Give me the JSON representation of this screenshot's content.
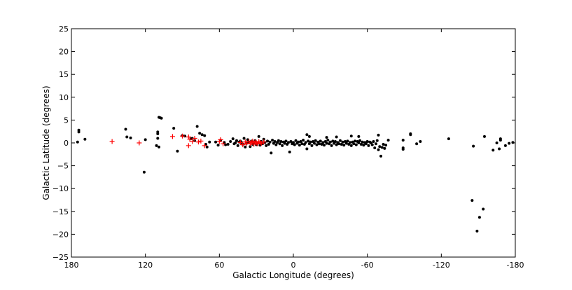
{
  "chart_data": {
    "type": "scatter",
    "xlabel": "Galactic Longitude (degrees)",
    "ylabel": "Galactic Latitude (degrees)",
    "xlim": [
      180,
      -180
    ],
    "ylim": [
      -25,
      25
    ],
    "x_ticks": [
      180,
      120,
      60,
      0,
      -60,
      -120,
      -180
    ],
    "x_tick_labels": [
      "180",
      "120",
      "60",
      "0",
      "-60",
      "-120",
      "-180"
    ],
    "y_ticks": [
      25,
      20,
      15,
      10,
      5,
      0,
      -5,
      -10,
      -15,
      -20,
      -25
    ],
    "y_tick_labels": [
      "25",
      "20",
      "15",
      "10",
      "5",
      "0",
      "−5",
      "−10",
      "−15",
      "−20",
      "−25"
    ],
    "grid": false,
    "series": [
      {
        "marker": "dot",
        "color": "#000000",
        "points": [
          [
            174,
            2.8
          ],
          [
            174,
            2.4
          ],
          [
            175,
            0.2
          ],
          [
            169,
            0.8
          ],
          [
            136,
            3.0
          ],
          [
            135,
            1.3
          ],
          [
            132,
            1.1
          ],
          [
            120,
            0.7
          ],
          [
            121,
            -6.4
          ],
          [
            108,
            5.5
          ],
          [
            109,
            5.6
          ],
          [
            107,
            5.4
          ],
          [
            110,
            2.4
          ],
          [
            110,
            2.0
          ],
          [
            110,
            1.0
          ],
          [
            111,
            -0.6
          ],
          [
            109,
            -0.9
          ],
          [
            97,
            3.2
          ],
          [
            94,
            -1.8
          ],
          [
            90,
            1.6
          ],
          [
            88,
            1.5
          ],
          [
            83,
            0.9
          ],
          [
            82,
            1.0
          ],
          [
            80,
            0.5
          ],
          [
            78,
            3.6
          ],
          [
            76,
            2.1
          ],
          [
            74,
            1.8
          ],
          [
            72,
            1.6
          ],
          [
            71,
            -0.3
          ],
          [
            70,
            -0.9
          ],
          [
            68,
            0.2
          ],
          [
            63,
            0.2
          ],
          [
            61,
            -0.5
          ],
          [
            59,
            0.6
          ],
          [
            56,
            0.1
          ],
          [
            55,
            -0.4
          ],
          [
            53,
            -0.3
          ],
          [
            51,
            0.3
          ],
          [
            49,
            0.9
          ],
          [
            48,
            -0.2
          ],
          [
            47,
            0.0
          ],
          [
            46,
            0.5
          ],
          [
            45,
            -0.6
          ],
          [
            44,
            0.2
          ],
          [
            43,
            0.4
          ],
          [
            42,
            0.1
          ],
          [
            41,
            -0.3
          ],
          [
            40,
            1.0
          ],
          [
            39,
            -0.9
          ],
          [
            38,
            -0.1
          ],
          [
            37,
            0.7
          ],
          [
            36,
            0.2
          ],
          [
            35,
            -0.8
          ],
          [
            34,
            0.4
          ],
          [
            33,
            -0.3
          ],
          [
            32,
            0.1
          ],
          [
            31,
            0.5
          ],
          [
            30,
            -0.4
          ],
          [
            29,
            0.0
          ],
          [
            28,
            1.4
          ],
          [
            27,
            -0.5
          ],
          [
            26,
            0.3
          ],
          [
            25,
            -0.2
          ],
          [
            24,
            0.8
          ],
          [
            23,
            0.1
          ],
          [
            22,
            -0.6
          ],
          [
            21,
            0.4
          ],
          [
            20,
            -0.3
          ],
          [
            19,
            0.2
          ],
          [
            18,
            -2.2
          ],
          [
            17,
            0.6
          ],
          [
            16,
            -0.1
          ],
          [
            15,
            0.3
          ],
          [
            14,
            -0.4
          ],
          [
            13,
            0.1
          ],
          [
            12,
            0.5
          ],
          [
            11,
            -0.2
          ],
          [
            10,
            0.3
          ],
          [
            9,
            -0.6
          ],
          [
            8,
            0.2
          ],
          [
            7,
            -0.1
          ],
          [
            6,
            0.4
          ],
          [
            5,
            -0.3
          ],
          [
            4,
            0.1
          ],
          [
            3,
            -2.0
          ],
          [
            2,
            0.3
          ],
          [
            1,
            -0.2
          ],
          [
            0,
            0.1
          ],
          [
            -1,
            -0.4
          ],
          [
            -2,
            0.5
          ],
          [
            -3,
            -0.1
          ],
          [
            -4,
            0.2
          ],
          [
            -5,
            -0.5
          ],
          [
            -6,
            0.3
          ],
          [
            -7,
            -0.2
          ],
          [
            -8,
            0.6
          ],
          [
            -9,
            -0.3
          ],
          [
            -10,
            0.1
          ],
          [
            -11,
            -1.3
          ],
          [
            -12,
            0.4
          ],
          [
            -13,
            -0.2
          ],
          [
            -14,
            0.2
          ],
          [
            -15,
            -0.6
          ],
          [
            -16,
            0.3
          ],
          [
            -17,
            -0.1
          ],
          [
            -18,
            0.5
          ],
          [
            -19,
            -0.4
          ],
          [
            -20,
            0.2
          ],
          [
            -21,
            -0.2
          ],
          [
            -22,
            0.4
          ],
          [
            -23,
            -0.3
          ],
          [
            -24,
            0.1
          ],
          [
            -25,
            -0.5
          ],
          [
            -26,
            0.3
          ],
          [
            -27,
            -0.1
          ],
          [
            -28,
            0.6
          ],
          [
            -29,
            -0.2
          ],
          [
            -30,
            0.2
          ],
          [
            -31,
            -0.6
          ],
          [
            -32,
            0.4
          ],
          [
            -33,
            -0.1
          ],
          [
            -34,
            0.3
          ],
          [
            -35,
            -0.4
          ],
          [
            -36,
            0.1
          ],
          [
            -37,
            -0.2
          ],
          [
            -38,
            0.5
          ],
          [
            -39,
            -0.3
          ],
          [
            -40,
            0.2
          ],
          [
            -41,
            -0.5
          ],
          [
            -42,
            0.3
          ],
          [
            -43,
            -0.1
          ],
          [
            -44,
            0.4
          ],
          [
            -45,
            -0.3
          ],
          [
            -46,
            0.1
          ],
          [
            -47,
            -0.6
          ],
          [
            -48,
            0.2
          ],
          [
            -49,
            -0.2
          ],
          [
            -50,
            0.4
          ],
          [
            -51,
            -0.4
          ],
          [
            -52,
            0.3
          ],
          [
            -53,
            0.0
          ],
          [
            -54,
            0.5
          ],
          [
            -55,
            -0.3
          ],
          [
            -56,
            0.2
          ],
          [
            -57,
            -0.5
          ],
          [
            -58,
            0.1
          ],
          [
            -59,
            -0.2
          ],
          [
            -60,
            0.3
          ],
          [
            -61,
            -0.6
          ],
          [
            -62,
            0.2
          ],
          [
            -63,
            0.0
          ],
          [
            -64,
            -0.4
          ],
          [
            -65,
            0.3
          ],
          [
            -66,
            -1.1
          ],
          [
            -67,
            -0.2
          ],
          [
            -68,
            0.5
          ],
          [
            -69,
            -1.5
          ],
          [
            -70,
            -0.8
          ],
          [
            -71,
            -2.9
          ],
          [
            -72,
            -1.0
          ],
          [
            -73,
            -0.3
          ],
          [
            -74,
            -1.2
          ],
          [
            -75,
            -0.5
          ],
          [
            -77,
            0.6
          ],
          [
            -11,
            1.8
          ],
          [
            -13,
            1.4
          ],
          [
            -27,
            1.2
          ],
          [
            -35,
            1.3
          ],
          [
            -47,
            1.5
          ],
          [
            -53,
            1.4
          ],
          [
            -69,
            1.7
          ],
          [
            -89,
            0.6
          ],
          [
            -89,
            -1.1
          ],
          [
            -89,
            -1.4
          ],
          [
            -95,
            1.8
          ],
          [
            -95,
            2.0
          ],
          [
            -100,
            -0.2
          ],
          [
            -103,
            0.3
          ],
          [
            -126,
            0.9
          ],
          [
            -145,
            -12.6
          ],
          [
            -146,
            -0.7
          ],
          [
            -149,
            -19.3
          ],
          [
            -151,
            -16.3
          ],
          [
            -154,
            -14.5
          ],
          [
            -155,
            1.4
          ],
          [
            -162,
            -1.6
          ],
          [
            -165,
            0.0
          ],
          [
            -167,
            -1.3
          ],
          [
            -168,
            0.6
          ],
          [
            -168,
            0.9
          ],
          [
            -172,
            -0.6
          ],
          [
            -175,
            -0.1
          ],
          [
            -178,
            0.1
          ]
        ]
      },
      {
        "marker": "plus",
        "color": "#ff0000",
        "points": [
          [
            147,
            0.3
          ],
          [
            125,
            0.0
          ],
          [
            98,
            1.4
          ],
          [
            90,
            1.5
          ],
          [
            85,
            1.3
          ],
          [
            85,
            -0.6
          ],
          [
            84,
            0.8
          ],
          [
            82,
            0.3
          ],
          [
            80,
            1.0
          ],
          [
            77,
            0.2
          ],
          [
            75,
            0.4
          ],
          [
            72,
            -0.6
          ],
          [
            60,
            0.3
          ],
          [
            59,
            0.7
          ],
          [
            57,
            -0.2
          ],
          [
            43,
            0.1
          ],
          [
            41,
            -0.4
          ],
          [
            39,
            0.2
          ],
          [
            38,
            -0.1
          ],
          [
            36,
            0.3
          ],
          [
            35,
            -0.2
          ],
          [
            34,
            0.1
          ],
          [
            33,
            0.4
          ],
          [
            32,
            -0.3
          ],
          [
            31,
            0.2
          ],
          [
            30,
            0.0
          ],
          [
            29,
            -0.2
          ],
          [
            28,
            0.3
          ],
          [
            27,
            0.1
          ],
          [
            26,
            -0.1
          ],
          [
            24,
            0.2
          ]
        ]
      }
    ]
  }
}
